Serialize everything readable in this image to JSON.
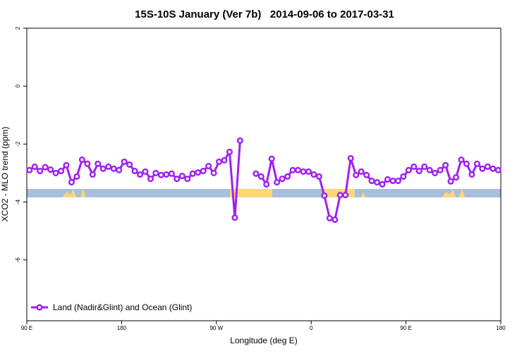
{
  "chart_data": {
    "type": "line",
    "title": "15S-10S January (Ver 7b)   2014-09-06 to 2017-03-31",
    "x_label": "Longitude (deg E)",
    "y_label": "XCO2 - MLO trend (ppm)",
    "xlim": [
      90,
      540
    ],
    "ylim": [
      -8.1,
      2
    ],
    "xticks": [
      {
        "value": 90,
        "label": "90 E"
      },
      180,
      {
        "value": 270,
        "label": "90 W"
      },
      {
        "value": 360,
        "label": "0"
      },
      {
        "value": 450,
        "label": "90 E"
      },
      {
        "value": 540,
        "label": "180"
      }
    ],
    "yticks": [
      2,
      0,
      -2,
      -4,
      -6
    ],
    "legend": "bottom-left",
    "x": [
      92.5,
      97.5,
      102.5,
      107.5,
      112.5,
      117.5,
      122.5,
      127.5,
      132.5,
      137.5,
      142.5,
      147.5,
      152.5,
      157.5,
      162.5,
      167.5,
      172.5,
      177.5,
      182.5,
      187.5,
      192.5,
      197.5,
      202.5,
      207.5,
      212.5,
      217.5,
      222.5,
      227.5,
      232.5,
      237.5,
      242.5,
      247.5,
      252.5,
      257.5,
      262.5,
      267.5,
      272.5,
      277.5,
      282.5,
      287.5,
      292.5,
      297.5,
      302.5,
      307.5,
      312.5,
      317.5,
      322.5,
      327.5,
      332.5,
      337.5,
      342.5,
      347.5,
      352.5,
      357.5,
      362.5,
      367.5,
      372.5,
      377.5,
      382.5,
      387.5,
      392.5,
      397.5,
      402.5,
      407.5,
      412.5,
      417.5,
      422.5,
      427.5,
      432.5,
      437.5,
      442.5,
      447.5,
      452.5,
      457.5,
      462.5,
      467.5,
      472.5,
      477.5,
      482.5,
      487.5,
      492.5,
      497.5,
      502.5,
      507.5,
      512.5,
      517.5,
      522.5,
      527.5,
      532.5,
      537.5
    ],
    "series": [
      {
        "name": "Land (Nadir&Glint) and Ocean (Glint)",
        "color": "#a020f0",
        "values": [
          -2.9,
          -2.78,
          -2.93,
          -2.8,
          -2.88,
          -3.0,
          -2.93,
          -2.73,
          -3.32,
          -3.12,
          -2.54,
          -2.68,
          -3.05,
          -2.68,
          -2.85,
          -2.78,
          -2.85,
          -2.9,
          -2.61,
          -2.71,
          -2.93,
          -3.05,
          -2.95,
          -3.2,
          -3.0,
          -3.07,
          -3.05,
          -3.02,
          -3.2,
          -3.1,
          -3.2,
          -3.02,
          -2.98,
          -2.93,
          -2.76,
          -3.0,
          -2.61,
          -2.56,
          -2.27,
          -4.54,
          -1.88,
          null,
          null,
          -3.02,
          -3.12,
          -3.39,
          -2.51,
          -3.32,
          -3.2,
          -3.12,
          -2.9,
          -2.9,
          -2.95,
          -2.95,
          -3.05,
          -3.12,
          -3.78,
          -4.56,
          -4.61,
          -3.76,
          -3.76,
          -2.49,
          -3.07,
          -2.95,
          -3.07,
          -3.27,
          -3.32,
          -3.39,
          -3.22,
          -3.27,
          -3.27,
          -3.12,
          -2.9,
          -2.78,
          -2.93,
          -2.78,
          -2.9,
          -3.0,
          -2.9,
          -2.73,
          -3.29,
          -3.15,
          -2.54,
          -2.68,
          -3.05,
          -2.68,
          -2.85,
          -2.78,
          -2.85,
          -2.9
        ]
      }
    ]
  }
}
